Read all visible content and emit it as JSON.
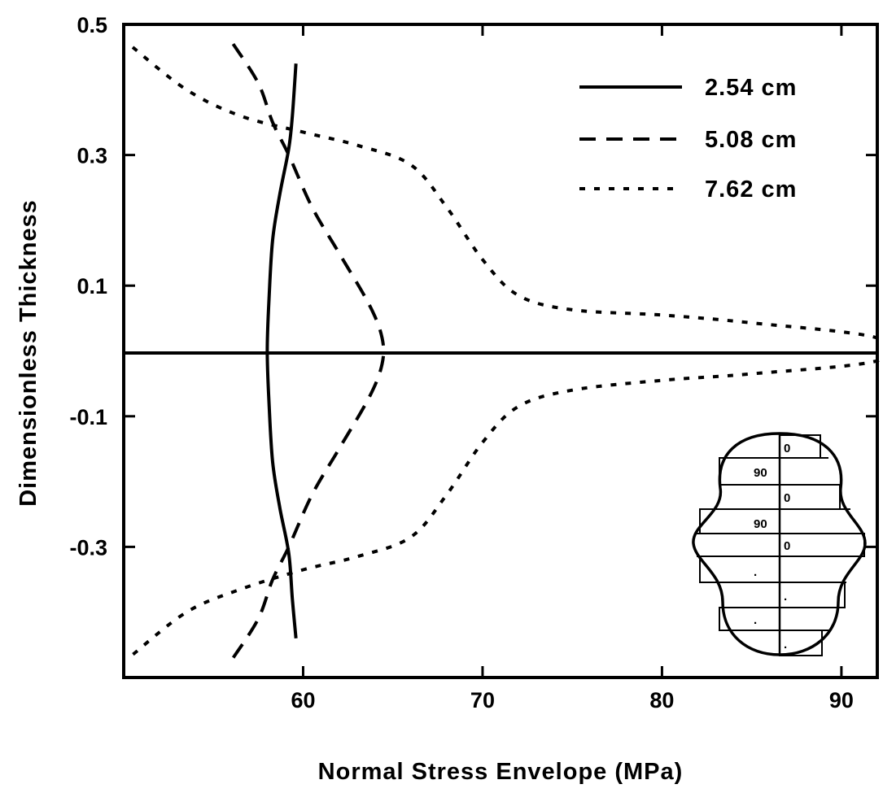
{
  "chart_data": {
    "type": "line",
    "xlabel": "Normal Stress Envelope (MPa)",
    "ylabel": "Dimensionless Thickness",
    "xlim": [
      50,
      92
    ],
    "ylim": [
      -0.5,
      0.5
    ],
    "x_ticks": [
      60,
      70,
      80,
      90
    ],
    "y_ticks": [
      0.5,
      0.3,
      0.1,
      -0.1,
      -0.3
    ],
    "y_tick_labels": [
      "0.5",
      "0.3",
      "0.1",
      "-0.1",
      "-0.3"
    ],
    "grid": false,
    "legend_position": "top-right",
    "series": [
      {
        "name": "2.54 cm",
        "dash": "solid",
        "points": [
          [
            59.6,
            0.44
          ],
          [
            59.4,
            0.36
          ],
          [
            59.2,
            0.31
          ],
          [
            58.7,
            0.24
          ],
          [
            58.3,
            0.17
          ],
          [
            58.1,
            0.08
          ],
          [
            58.0,
            0.0
          ],
          [
            58.1,
            -0.08
          ],
          [
            58.3,
            -0.17
          ],
          [
            58.7,
            -0.24
          ],
          [
            59.2,
            -0.31
          ],
          [
            59.4,
            -0.38
          ],
          [
            59.6,
            -0.44
          ]
        ]
      },
      {
        "name": "5.08 cm",
        "dash": "dashed",
        "points": [
          [
            56.1,
            0.47
          ],
          [
            57.5,
            0.41
          ],
          [
            58.3,
            0.35
          ],
          [
            59.2,
            0.3
          ],
          [
            60.5,
            0.22
          ],
          [
            62.0,
            0.15
          ],
          [
            63.7,
            0.07
          ],
          [
            64.4,
            0.02
          ],
          [
            64.4,
            -0.02
          ],
          [
            63.7,
            -0.07
          ],
          [
            62.0,
            -0.15
          ],
          [
            60.5,
            -0.22
          ],
          [
            59.2,
            -0.3
          ],
          [
            58.3,
            -0.35
          ],
          [
            57.5,
            -0.41
          ],
          [
            56.1,
            -0.47
          ]
        ]
      },
      {
        "name": "7.62 cm",
        "dash": "dotted",
        "points": [
          [
            50.5,
            0.465
          ],
          [
            53.5,
            0.4
          ],
          [
            56.5,
            0.36
          ],
          [
            60.0,
            0.335
          ],
          [
            63.0,
            0.315
          ],
          [
            66.0,
            0.285
          ],
          [
            68.0,
            0.22
          ],
          [
            70.0,
            0.14
          ],
          [
            72.0,
            0.085
          ],
          [
            75.0,
            0.063
          ],
          [
            80.0,
            0.055
          ],
          [
            85.0,
            0.043
          ],
          [
            92.0,
            0.02
          ],
          [
            92.0,
            -0.015
          ],
          [
            85.0,
            -0.035
          ],
          [
            80.0,
            -0.045
          ],
          [
            75.0,
            -0.06
          ],
          [
            72.0,
            -0.085
          ],
          [
            70.0,
            -0.14
          ],
          [
            68.0,
            -0.22
          ],
          [
            66.0,
            -0.285
          ],
          [
            63.0,
            -0.315
          ],
          [
            60.0,
            -0.335
          ],
          [
            56.5,
            -0.365
          ],
          [
            53.5,
            -0.4
          ],
          [
            50.5,
            -0.465
          ]
        ]
      }
    ],
    "inset": {
      "layer_labels": [
        "0",
        "90",
        "0",
        "90",
        "0",
        ".",
        ".",
        ".",
        ".",
        "."
      ]
    }
  }
}
